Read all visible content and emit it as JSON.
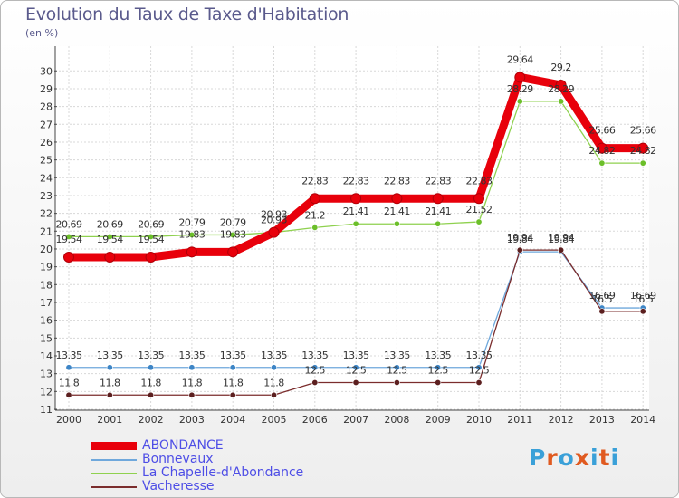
{
  "title": "Evolution du Taux de Taxe d'Habitation",
  "unit_label": "(en %)",
  "logo": {
    "text": "Proxiti",
    "letter_colors": [
      "#3aa0d8",
      "#e05a20",
      "#3aa0d8",
      "#e05a20",
      "#3aa0d8",
      "#e05a20",
      "#3aa0d8"
    ]
  },
  "chart_data": {
    "type": "line",
    "x": [
      2000,
      2001,
      2002,
      2003,
      2004,
      2005,
      2006,
      2007,
      2008,
      2009,
      2010,
      2011,
      2012,
      2013,
      2014
    ],
    "ylim": [
      11,
      30
    ],
    "yticks": [
      11,
      12,
      13,
      14,
      15,
      16,
      17,
      18,
      19,
      20,
      21,
      22,
      23,
      24,
      25,
      26,
      27,
      28,
      29,
      30
    ],
    "grid": true,
    "legend_position": "bottom-left",
    "series": [
      {
        "name": "ABONDANCE",
        "color": "#e8000b",
        "marker_color": "#e8000b",
        "width": 9,
        "values": [
          19.54,
          19.54,
          19.54,
          19.83,
          19.83,
          20.93,
          22.83,
          22.83,
          22.83,
          22.83,
          22.83,
          29.64,
          29.2,
          25.66,
          25.66
        ],
        "labels": [
          "19.54",
          "19.54",
          "19.54",
          "19.83",
          "19.83",
          "20.93",
          "22.83",
          "22.83",
          "22.83",
          "22.83",
          "22.83",
          "29.64",
          "29.2",
          "25.66",
          "25.66"
        ]
      },
      {
        "name": "Bonnevaux",
        "color": "#6fa8dc",
        "marker_color": "#3d85c6",
        "width": 1.3,
        "values": [
          13.35,
          13.35,
          13.35,
          13.35,
          13.35,
          13.35,
          13.35,
          13.35,
          13.35,
          13.35,
          13.35,
          19.84,
          19.84,
          16.69,
          16.69
        ],
        "labels": [
          "13.35",
          "13.35",
          "13.35",
          "13.35",
          "13.35",
          "13.35",
          "13.35",
          "13.35",
          "13.35",
          "13.35",
          "13.35",
          "19.84",
          "19.84",
          "16.69",
          "16.69"
        ]
      },
      {
        "name": "La Chapelle-d'Abondance",
        "color": "#8fd14f",
        "marker_color": "#6cbf2a",
        "width": 1.3,
        "values": [
          20.69,
          20.69,
          20.69,
          20.79,
          20.79,
          20.93,
          21.2,
          21.41,
          21.41,
          21.41,
          21.52,
          28.29,
          28.29,
          24.82,
          24.82
        ],
        "labels": [
          "20.69",
          "20.69",
          "20.69",
          "20.79",
          "20.79",
          "20.93",
          "21.2",
          "21.41",
          "21.41",
          "21.41",
          "21.52",
          "28.29",
          "28.29",
          "24.82",
          "24.82"
        ]
      },
      {
        "name": "Vacheresse",
        "color": "#7b2d2d",
        "marker_color": "#5c1f1f",
        "width": 1.3,
        "values": [
          11.8,
          11.8,
          11.8,
          11.8,
          11.8,
          11.8,
          12.5,
          12.5,
          12.5,
          12.5,
          12.5,
          19.94,
          19.94,
          16.5,
          16.5
        ],
        "labels": [
          "11.8",
          "11.8",
          "11.8",
          "11.8",
          "11.8",
          "11.8",
          "12.5",
          "12.5",
          "12.5",
          "12.5",
          "12.5",
          "19.94",
          "19.94",
          "16.5",
          "16.5"
        ]
      }
    ]
  }
}
